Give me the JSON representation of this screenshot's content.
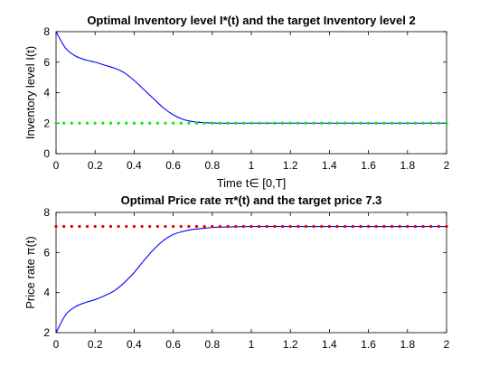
{
  "chart_data": [
    {
      "type": "line",
      "title": "Optimal Inventory level I*(t) and the target Inventory level 2",
      "xlabel": "Time t∈ [0,T]",
      "ylabel": "Inventory level I(t)",
      "xlim": [
        0,
        2
      ],
      "ylim": [
        0,
        8
      ],
      "xticks": [
        "0",
        "0.2",
        "0.4",
        "0.6",
        "0.8",
        "1",
        "1.2",
        "1.4",
        "1.6",
        "1.8",
        "2"
      ],
      "yticks": [
        "0",
        "2",
        "4",
        "6",
        "8"
      ],
      "grid": false,
      "series": [
        {
          "style": "solid",
          "color": "#0000ff",
          "x": [
            0,
            0.05,
            0.1,
            0.15,
            0.2,
            0.25,
            0.3,
            0.35,
            0.4,
            0.45,
            0.5,
            0.55,
            0.6,
            0.65,
            0.7,
            0.75,
            0.8,
            0.85,
            0.9,
            1.0,
            1.2,
            1.4,
            1.6,
            1.8,
            2.0
          ],
          "values": [
            8.0,
            6.9,
            6.4,
            6.15,
            6.0,
            5.8,
            5.6,
            5.3,
            4.8,
            4.2,
            3.6,
            3.0,
            2.55,
            2.25,
            2.1,
            2.04,
            2.01,
            2.0,
            2.0,
            2.0,
            2.0,
            2.0,
            2.0,
            2.0,
            2.0
          ]
        },
        {
          "style": "dotted",
          "color": "#00ee00",
          "x": [
            0,
            2
          ],
          "values": [
            2,
            2
          ]
        }
      ]
    },
    {
      "type": "line",
      "title": "Optimal Price rate π*(t) and the target price 7.3",
      "xlabel": "",
      "ylabel": "Price rate π(t)",
      "xlim": [
        0,
        2
      ],
      "ylim": [
        2,
        8
      ],
      "xticks": [
        "0",
        "0.2",
        "0.4",
        "0.6",
        "0.8",
        "1",
        "1.2",
        "1.4",
        "1.6",
        "1.8",
        "2"
      ],
      "yticks": [
        "2",
        "4",
        "6",
        "8"
      ],
      "grid": false,
      "series": [
        {
          "style": "solid",
          "color": "#0000ff",
          "x": [
            0,
            0.05,
            0.1,
            0.15,
            0.2,
            0.25,
            0.3,
            0.35,
            0.4,
            0.45,
            0.5,
            0.55,
            0.6,
            0.65,
            0.7,
            0.75,
            0.8,
            0.85,
            0.9,
            1.0,
            1.2,
            1.4,
            1.6,
            1.8,
            2.0
          ],
          "values": [
            2.0,
            2.9,
            3.3,
            3.5,
            3.65,
            3.85,
            4.1,
            4.5,
            5.0,
            5.6,
            6.15,
            6.6,
            6.9,
            7.05,
            7.15,
            7.2,
            7.25,
            7.27,
            7.28,
            7.3,
            7.3,
            7.3,
            7.3,
            7.3,
            7.3
          ]
        },
        {
          "style": "dotted",
          "color": "#e00000",
          "x": [
            0,
            2
          ],
          "values": [
            7.3,
            7.3
          ]
        }
      ]
    }
  ]
}
